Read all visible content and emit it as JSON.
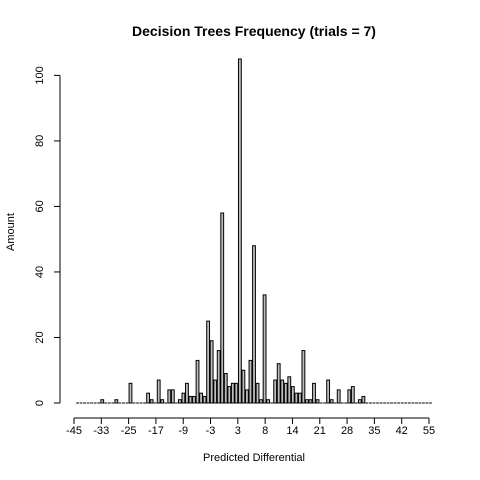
{
  "chart_data": {
    "type": "bar",
    "title": "Decision Trees Frequency (trials = 7)",
    "xlabel": "Predicted Differential",
    "ylabel": "Amount",
    "xlim": [
      -46,
      56
    ],
    "ylim": [
      0,
      105
    ],
    "x_ticks": [
      "-45",
      "-33",
      "-25",
      "-17",
      "-9",
      "-3",
      "3",
      "8",
      "14",
      "21",
      "28",
      "35",
      "42",
      "55"
    ],
    "y_ticks": [
      "0",
      "20",
      "40",
      "60",
      "80",
      "100"
    ],
    "grid": false,
    "x": [
      -45,
      -44,
      -43,
      -42,
      -41,
      -40,
      -39,
      -38,
      -37,
      -36,
      -35,
      -34,
      -33,
      -32,
      -31,
      -30,
      -29,
      -28,
      -27,
      -26,
      -25,
      -24,
      -23,
      -22,
      -21,
      -20,
      -19,
      -18,
      -17,
      -16,
      -15,
      -14,
      -13,
      -12,
      -11,
      -10,
      -9,
      -8,
      -7,
      -6,
      -5,
      -4,
      -3,
      -2,
      -1,
      0,
      1,
      2,
      3,
      4,
      5,
      6,
      7,
      8,
      9,
      10,
      11,
      12,
      13,
      14,
      15,
      16,
      17,
      18,
      19,
      20,
      21,
      22,
      23,
      24,
      25,
      26,
      27,
      28,
      29,
      30,
      31,
      32,
      33,
      34,
      35,
      36,
      37,
      38,
      39,
      40,
      41,
      42,
      43,
      44,
      45,
      46,
      47,
      48,
      49,
      50,
      51,
      52,
      53,
      54,
      55
    ],
    "values": [
      0,
      0,
      0,
      0,
      0,
      0,
      0,
      1,
      0,
      0,
      0,
      1,
      0,
      0,
      0,
      6,
      0,
      0,
      0,
      0,
      3,
      1,
      0,
      7,
      1,
      0,
      4,
      4,
      0,
      1,
      3,
      6,
      2,
      2,
      13,
      3,
      2,
      25,
      19,
      7,
      16,
      58,
      9,
      5,
      6,
      6,
      105,
      10,
      4,
      13,
      48,
      6,
      1,
      33,
      1,
      0,
      7,
      12,
      7,
      6,
      8,
      5,
      3,
      3,
      16,
      1,
      1,
      6,
      1,
      0,
      0,
      7,
      1,
      0,
      4,
      0,
      0,
      4,
      5,
      0,
      1,
      2,
      0,
      0,
      0,
      0,
      0,
      0,
      0,
      0,
      0,
      0,
      0,
      0,
      0,
      0,
      0,
      0,
      0,
      0,
      0
    ]
  }
}
